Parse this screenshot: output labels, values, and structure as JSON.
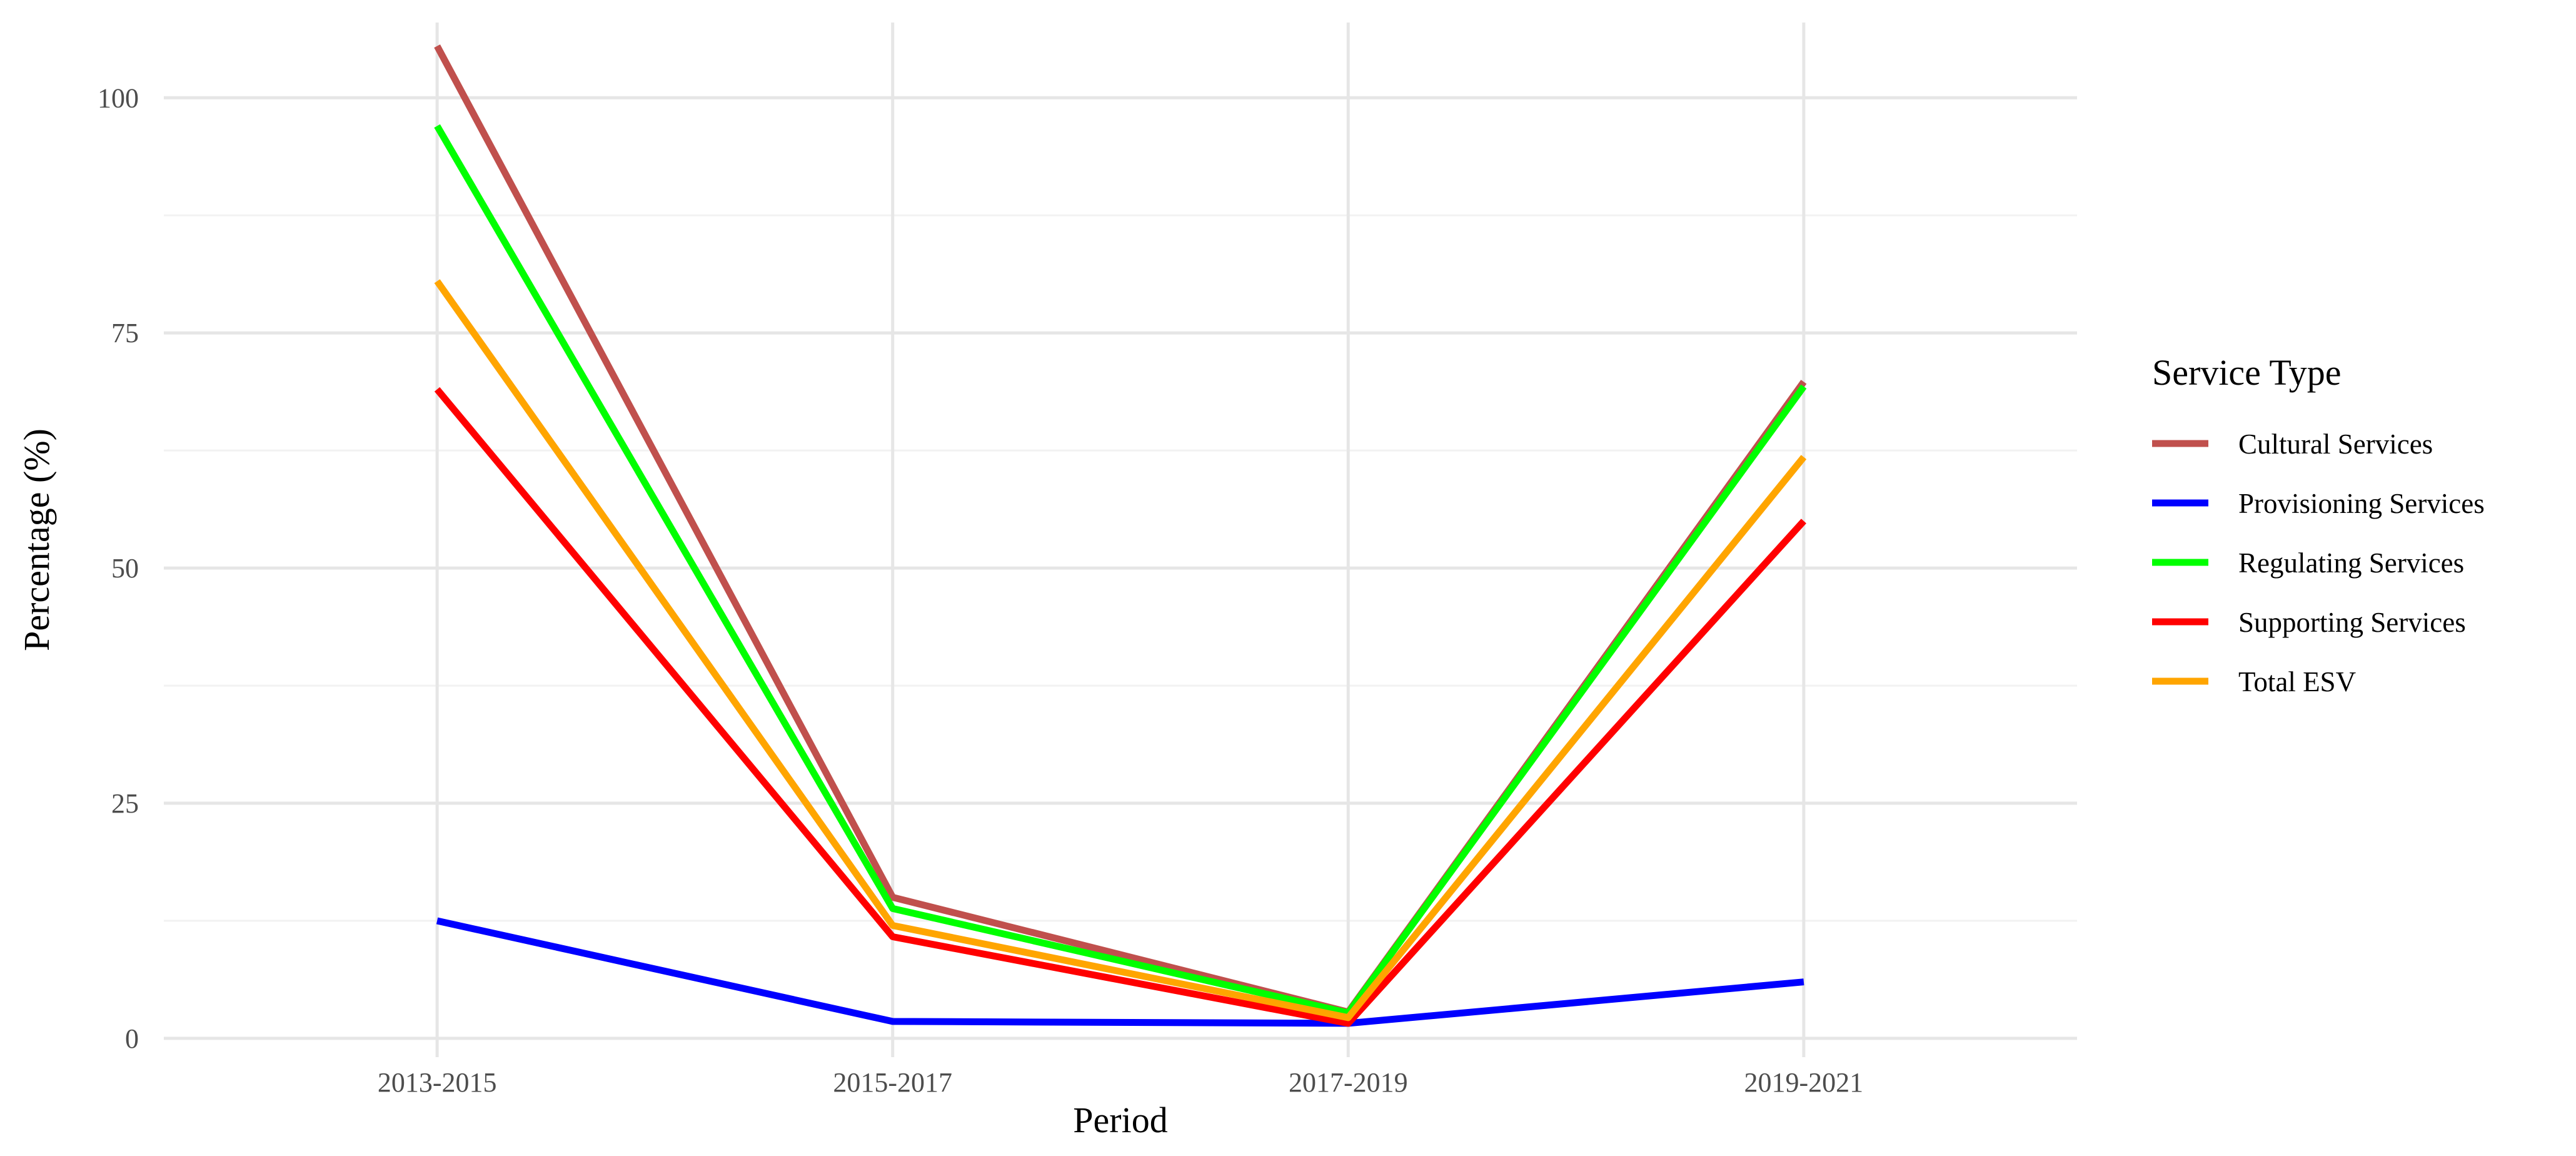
{
  "chart_data": {
    "type": "line",
    "title": "",
    "xlabel": "Period",
    "ylabel": "Percentage (%)",
    "categories": [
      "2013-2015",
      "2015-2017",
      "2017-2019",
      "2019-2021"
    ],
    "ylim": [
      -2,
      108
    ],
    "yticks": [
      0,
      25,
      50,
      75,
      100
    ],
    "grid": true,
    "legend": {
      "title": "Service Type",
      "placement": "right"
    },
    "series": [
      {
        "name": "Cultural Services",
        "color": "#C0504D",
        "values": [
          105.5,
          15.0,
          2.8,
          69.8
        ]
      },
      {
        "name": "Provisioning Services",
        "color": "#0000FF",
        "values": [
          12.5,
          1.8,
          1.6,
          6.0
        ]
      },
      {
        "name": "Regulating Services",
        "color": "#00FF00",
        "values": [
          97.0,
          13.8,
          2.7,
          69.3
        ]
      },
      {
        "name": "Supporting Services",
        "color": "#FF0000",
        "values": [
          69.0,
          10.8,
          1.6,
          55.0
        ]
      },
      {
        "name": "Total ESV",
        "color": "#FFA500",
        "values": [
          80.5,
          12.0,
          2.2,
          61.8
        ]
      }
    ]
  }
}
